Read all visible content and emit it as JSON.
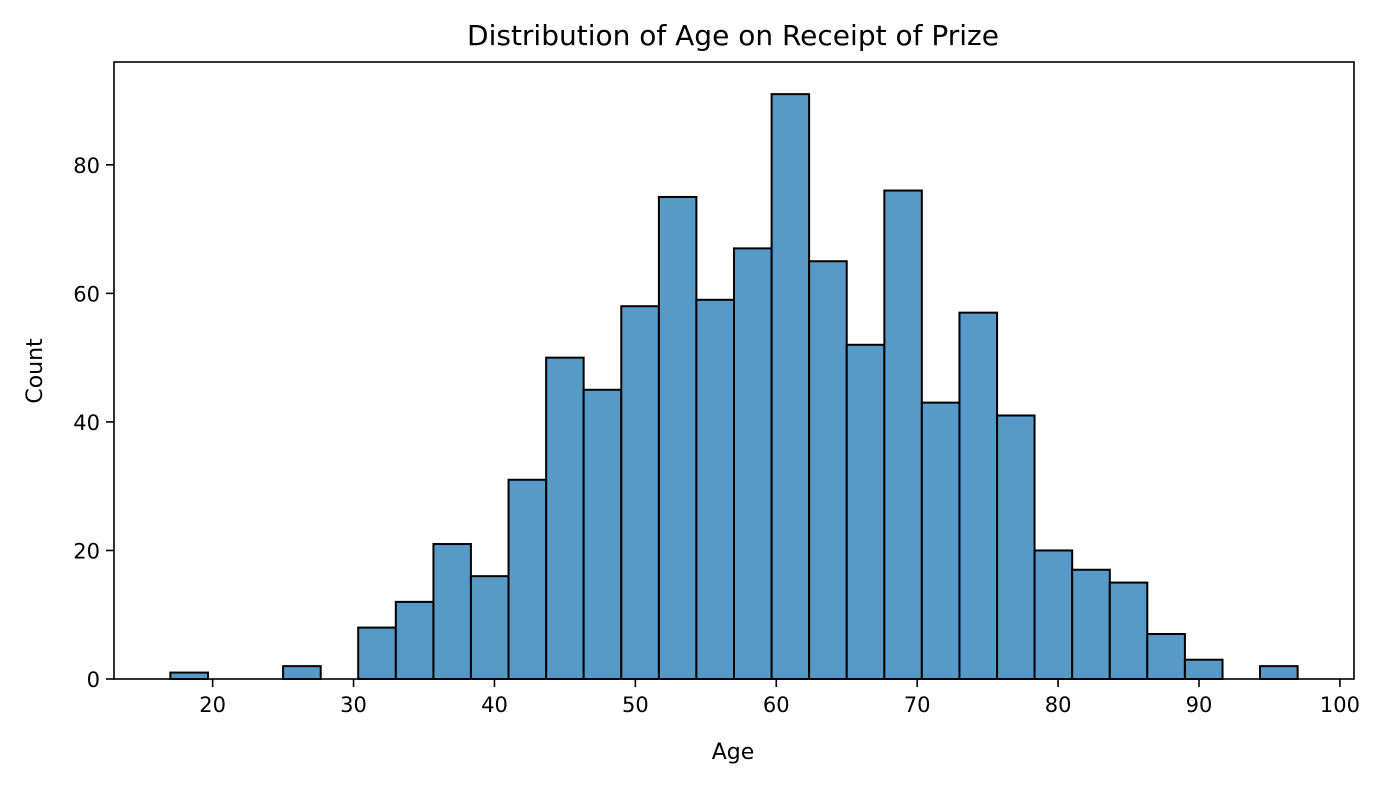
{
  "chart_data": {
    "type": "bar",
    "title": "Distribution of Age on Receipt of Prize",
    "xlabel": "Age",
    "ylabel": "Count",
    "xlim": [
      13,
      101
    ],
    "ylim": [
      0,
      96
    ],
    "xticks": [
      20,
      30,
      40,
      50,
      60,
      70,
      80,
      90,
      100
    ],
    "yticks": [
      0,
      20,
      40,
      60,
      80
    ],
    "grid": false,
    "bar_color": "#5799c7",
    "edge_color": "#000000",
    "bin_edges": [
      17,
      19.67,
      22.33,
      25,
      27.67,
      30.33,
      33,
      35.67,
      38.33,
      41,
      43.67,
      46.33,
      49,
      51.67,
      54.33,
      57,
      59.67,
      62.33,
      65,
      67.67,
      70.33,
      73,
      75.67,
      78.33,
      81,
      83.67,
      86.33,
      89,
      91.67,
      94.33,
      97
    ],
    "values": [
      1,
      0,
      0,
      2,
      0,
      8,
      12,
      21,
      16,
      31,
      50,
      45,
      58,
      75,
      59,
      67,
      91,
      65,
      52,
      76,
      43,
      57,
      41,
      20,
      17,
      15,
      7,
      3,
      0,
      2
    ]
  }
}
